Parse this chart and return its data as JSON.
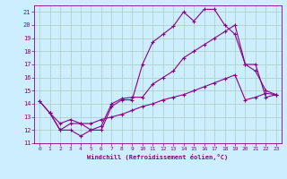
{
  "title": "",
  "xlabel": "Windchill (Refroidissement éolien,°C)",
  "background_color": "#cceeff",
  "grid_color": "#aaccbb",
  "line_color": "#880088",
  "xlim": [
    -0.5,
    23.5
  ],
  "ylim": [
    11,
    21.5
  ],
  "yticks": [
    11,
    12,
    13,
    14,
    15,
    16,
    17,
    18,
    19,
    20,
    21
  ],
  "xticks": [
    0,
    1,
    2,
    3,
    4,
    5,
    6,
    7,
    8,
    9,
    10,
    11,
    12,
    13,
    14,
    15,
    16,
    17,
    18,
    19,
    20,
    21,
    22,
    23
  ],
  "line1_x": [
    0,
    1,
    2,
    3,
    4,
    5,
    6,
    7,
    8,
    9,
    10,
    11,
    12,
    13,
    14,
    15,
    16,
    17,
    18,
    19,
    20,
    21,
    22,
    23
  ],
  "line1_y": [
    14.2,
    13.3,
    12.0,
    12.0,
    11.55,
    12.0,
    12.0,
    13.8,
    14.3,
    14.3,
    17.0,
    18.7,
    19.3,
    19.9,
    21.0,
    20.3,
    21.2,
    21.2,
    20.0,
    19.3,
    17.0,
    16.5,
    15.0,
    14.7
  ],
  "line2_x": [
    1,
    2,
    3,
    4,
    5,
    6,
    7,
    8,
    9,
    10,
    11,
    12,
    13,
    14,
    15,
    16,
    17,
    18,
    19,
    20,
    21,
    22,
    23
  ],
  "line2_y": [
    13.3,
    12.0,
    12.5,
    12.5,
    12.0,
    12.3,
    14.0,
    14.4,
    14.5,
    14.5,
    15.5,
    16.0,
    16.5,
    17.5,
    18.0,
    18.5,
    19.0,
    19.5,
    20.0,
    17.0,
    17.0,
    14.5,
    14.7
  ],
  "line3_x": [
    0,
    1,
    2,
    3,
    4,
    5,
    6,
    7,
    8,
    9,
    10,
    11,
    12,
    13,
    14,
    15,
    16,
    17,
    18,
    19,
    20,
    21,
    22,
    23
  ],
  "line3_y": [
    14.2,
    13.3,
    12.5,
    12.8,
    12.5,
    12.5,
    12.8,
    13.0,
    13.2,
    13.5,
    13.8,
    14.0,
    14.3,
    14.5,
    14.7,
    15.0,
    15.3,
    15.6,
    15.9,
    16.2,
    14.3,
    14.5,
    14.8,
    14.7
  ]
}
